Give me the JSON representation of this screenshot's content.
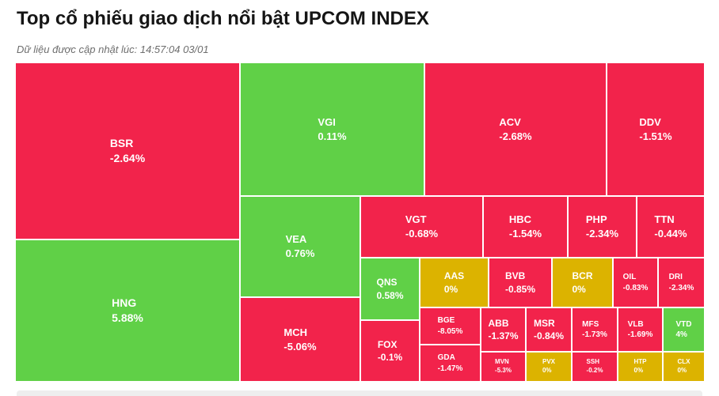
{
  "title": "Top cổ phiếu giao dịch nổi bật UPCOM INDEX",
  "subtitle": "Dữ liệu được cập nhật lúc: 14:57:04 03/01",
  "colors": {
    "down": "#f2234b",
    "up": "#60d047",
    "flat": "#dcb300"
  },
  "chart_data": {
    "type": "treemap",
    "title": "Top cổ phiếu giao dịch nổi bật UPCOM INDEX",
    "items": [
      {
        "ticker": "BSR",
        "change": "-2.64%",
        "status": "down"
      },
      {
        "ticker": "HNG",
        "change": "5.88%",
        "status": "up"
      },
      {
        "ticker": "VGI",
        "change": "0.11%",
        "status": "up"
      },
      {
        "ticker": "VEA",
        "change": "0.76%",
        "status": "up"
      },
      {
        "ticker": "MCH",
        "change": "-5.06%",
        "status": "down"
      },
      {
        "ticker": "ACV",
        "change": "-2.68%",
        "status": "down"
      },
      {
        "ticker": "DDV",
        "change": "-1.51%",
        "status": "down"
      },
      {
        "ticker": "VGT",
        "change": "-0.68%",
        "status": "down"
      },
      {
        "ticker": "HBC",
        "change": "-1.54%",
        "status": "down"
      },
      {
        "ticker": "PHP",
        "change": "-2.34%",
        "status": "down"
      },
      {
        "ticker": "TTN",
        "change": "-0.44%",
        "status": "down"
      },
      {
        "ticker": "QNS",
        "change": "0.58%",
        "status": "up"
      },
      {
        "ticker": "FOX",
        "change": "-0.1%",
        "status": "down"
      },
      {
        "ticker": "AAS",
        "change": "0%",
        "status": "flat"
      },
      {
        "ticker": "BVB",
        "change": "-0.85%",
        "status": "down"
      },
      {
        "ticker": "BCR",
        "change": "0%",
        "status": "flat"
      },
      {
        "ticker": "OIL",
        "change": "-0.83%",
        "status": "down"
      },
      {
        "ticker": "DRI",
        "change": "-2.34%",
        "status": "down"
      },
      {
        "ticker": "BGE",
        "change": "-8.05%",
        "status": "down"
      },
      {
        "ticker": "GDA",
        "change": "-1.47%",
        "status": "down"
      },
      {
        "ticker": "ABB",
        "change": "-1.37%",
        "status": "down"
      },
      {
        "ticker": "MSR",
        "change": "-0.84%",
        "status": "down"
      },
      {
        "ticker": "MFS",
        "change": "-1.73%",
        "status": "down"
      },
      {
        "ticker": "VLB",
        "change": "-1.69%",
        "status": "down"
      },
      {
        "ticker": "VTD",
        "change": "4%",
        "status": "up"
      },
      {
        "ticker": "MVN",
        "change": "-5.3%",
        "status": "down"
      },
      {
        "ticker": "PVX",
        "change": "0%",
        "status": "flat"
      },
      {
        "ticker": "SSH",
        "change": "-0.2%",
        "status": "down"
      },
      {
        "ticker": "HTP",
        "change": "0%",
        "status": "flat"
      },
      {
        "ticker": "CLX",
        "change": "0%",
        "status": "flat"
      }
    ]
  }
}
